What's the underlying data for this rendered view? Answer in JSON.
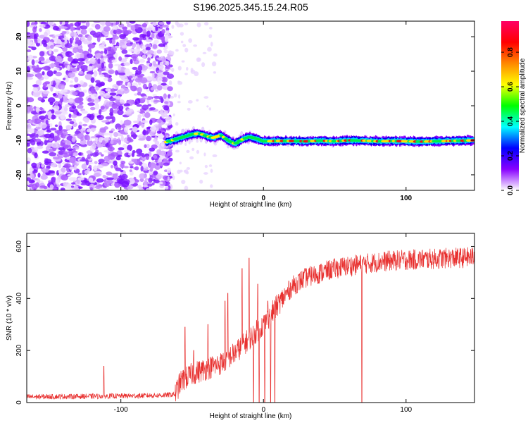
{
  "chart_data": [
    {
      "type": "heatmap",
      "title": "S196.2025.345.15.24.R05",
      "xlabel": "Height of straight line (km)",
      "ylabel": "Frequency (Hz)",
      "xlim": [
        -166,
        148
      ],
      "ylim": [
        -24.5,
        24.5
      ],
      "xticks": [
        -100,
        0,
        100
      ],
      "yticks": [
        -20,
        -10,
        0,
        10,
        20
      ],
      "xtick_labels": [
        "-100",
        "0",
        "100"
      ],
      "ytick_labels": [
        "-20",
        "-10",
        "0",
        "10",
        "20"
      ],
      "noise_region_x": [
        -166,
        -68
      ],
      "signal_start_x": -68,
      "signal_track": {
        "x": [
          -68,
          -60,
          -50,
          -45,
          -40,
          -35,
          -30,
          -25,
          -20,
          -15,
          -10,
          -5,
          0,
          10,
          20,
          30,
          40,
          50,
          60,
          70,
          80,
          90,
          100,
          110,
          120,
          130,
          140,
          148
        ],
        "freq": [
          -10.5,
          -9.5,
          -8.3,
          -8.0,
          -8.8,
          -9.3,
          -8.5,
          -10.0,
          -11.0,
          -9.8,
          -9.0,
          -9.5,
          -10.3,
          -10.2,
          -10.2,
          -10.3,
          -10.1,
          -10.3,
          -10.0,
          -10.1,
          -10.3,
          -10.2,
          -10.3,
          -10.4,
          -10.3,
          -10.2,
          -10.1,
          -10.0
        ]
      },
      "colorbar": {
        "label": "Normalized spectral amplitude",
        "range": [
          0.0,
          0.98
        ],
        "ticks": [
          0.0,
          0.2,
          0.4,
          0.6,
          0.8
        ],
        "tick_labels": [
          "0.0",
          "0.2",
          "0.4",
          "0.6",
          "0.8"
        ],
        "colors": [
          "#ffffff",
          "#8800ff",
          "#0000ff",
          "#00ffff",
          "#00ff00",
          "#ffff00",
          "#ff8800",
          "#ff0000",
          "#ff0066"
        ]
      }
    },
    {
      "type": "line",
      "xlabel": "Height of straight line (km)",
      "ylabel": "SNR (10 * v/v)",
      "xlim": [
        -166,
        148
      ],
      "ylim": [
        0,
        650
      ],
      "xticks": [
        -100,
        0,
        100
      ],
      "yticks": [
        0,
        200,
        400,
        600
      ],
      "xtick_labels": [
        "-100",
        "0",
        "100"
      ],
      "ytick_labels": [
        "0",
        "200",
        "400",
        "600"
      ],
      "color": "#e8302f",
      "trend": {
        "x": [
          -166,
          -120,
          -90,
          -70,
          -62,
          -58,
          -50,
          -40,
          -30,
          -20,
          -10,
          0,
          10,
          15,
          20,
          25,
          30,
          40,
          50,
          60,
          70,
          80,
          90,
          100,
          110,
          120,
          130,
          140,
          148
        ],
        "y": [
          22,
          24,
          26,
          28,
          32,
          80,
          110,
          130,
          150,
          190,
          245,
          300,
          375,
          410,
          445,
          465,
          480,
          498,
          515,
          525,
          532,
          540,
          545,
          548,
          550,
          552,
          555,
          556,
          560
        ]
      },
      "spikes": [
        {
          "x": -112,
          "y": 140
        },
        {
          "x": -55,
          "y": 290
        },
        {
          "x": -49,
          "y": 200
        },
        {
          "x": -39,
          "y": 300
        },
        {
          "x": -27,
          "y": 390
        },
        {
          "x": -25,
          "y": 420
        },
        {
          "x": -15,
          "y": 515
        },
        {
          "x": -10,
          "y": 555
        },
        {
          "x": -4,
          "y": 455
        },
        {
          "x": 3,
          "y": 390
        }
      ],
      "dips": [
        {
          "x": -7,
          "y": 0
        },
        {
          "x": -3,
          "y": 0
        },
        {
          "x": 1,
          "y": 0
        },
        {
          "x": 5,
          "y": 0
        },
        {
          "x": 8,
          "y": 0
        },
        {
          "x": 69,
          "y": 0
        }
      ]
    }
  ]
}
